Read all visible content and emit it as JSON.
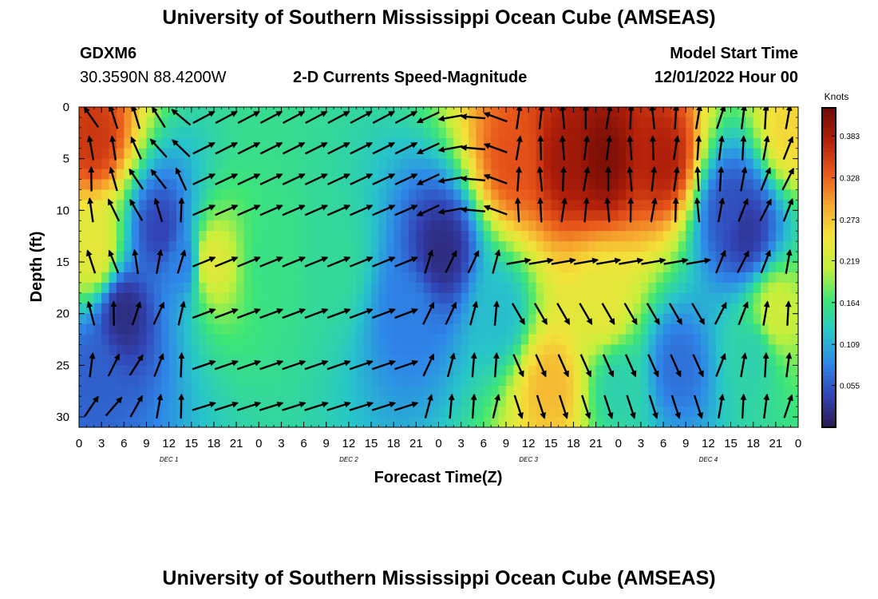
{
  "header": {
    "title": "University of Southern Mississippi Ocean Cube (AMSEAS)",
    "station": "GDXM6",
    "location": "30.3590N  88.4200W",
    "plot_title": "2-D Currents Speed-Magnitude",
    "model_start_label": "Model Start Time",
    "model_start_value": "12/01/2022 Hour 00",
    "footer_title": "University of Southern Mississippi Ocean Cube (AMSEAS)"
  },
  "chart_data": {
    "type": "heatmap",
    "title": "2-D Currents Speed-Magnitude",
    "xlabel": "Forecast Time(Z)",
    "ylabel": "Depth (ft)",
    "colorbar_label": "Knots",
    "colorbar_ticks": [
      "0.383",
      "0.328",
      "0.273",
      "0.219",
      "0.164",
      "0.109",
      "0.055"
    ],
    "colorbar_values": [
      0.383,
      0.328,
      0.273,
      0.219,
      0.164,
      0.109,
      0.055
    ],
    "color_range": [
      0.0,
      0.42
    ],
    "x_range_hours": [
      0,
      96
    ],
    "y_range_ft": [
      0,
      31
    ],
    "y_inverted": true,
    "x_tick_labels": [
      "0",
      "3",
      "6",
      "9",
      "12",
      "15",
      "18",
      "21",
      "0",
      "3",
      "6",
      "9",
      "12",
      "15",
      "18",
      "21",
      "0",
      "3",
      "6",
      "9",
      "12",
      "15",
      "18",
      "21",
      "0",
      "3",
      "6",
      "9",
      "12",
      "15",
      "18",
      "21",
      "0"
    ],
    "y_ticks": [
      0,
      5,
      10,
      15,
      20,
      25,
      30
    ],
    "day_labels": [
      {
        "label": "DEC 1",
        "hour": 12
      },
      {
        "label": "DEC 2",
        "hour": 36
      },
      {
        "label": "DEC 3",
        "hour": 60
      },
      {
        "label": "DEC 4",
        "hour": 84
      }
    ],
    "arrow_hours": [
      1,
      4,
      7,
      10,
      13,
      16,
      19,
      22,
      25,
      28,
      31,
      34,
      37,
      40,
      43,
      46,
      49,
      52,
      55,
      58,
      61,
      64,
      67,
      70,
      73,
      76,
      79,
      82,
      85,
      88,
      91,
      94
    ],
    "arrow_depths_ft": [
      1,
      4,
      7,
      10,
      15,
      20,
      25,
      29
    ],
    "speed_points": [
      {
        "hour": 2,
        "depth": 3,
        "speed": 0.36
      },
      {
        "hour": 2,
        "depth": 14,
        "speed": 0.24
      },
      {
        "hour": 2,
        "depth": 26,
        "speed": 0.06
      },
      {
        "hour": 6,
        "depth": 20,
        "speed": 0.02
      },
      {
        "hour": 11,
        "depth": 12,
        "speed": 0.04
      },
      {
        "hour": 14,
        "depth": 15,
        "speed": 0.08
      },
      {
        "hour": 17.5,
        "depth": 15,
        "speed": 0.24
      },
      {
        "hour": 26,
        "depth": 15,
        "speed": 0.16
      },
      {
        "hour": 34,
        "depth": 15,
        "speed": 0.15
      },
      {
        "hour": 44,
        "depth": 20,
        "speed": 0.08
      },
      {
        "hour": 48.5,
        "depth": 14,
        "speed": 0.02
      },
      {
        "hour": 56,
        "depth": 20,
        "speed": 0.12
      },
      {
        "hour": 58,
        "depth": 5,
        "speed": 0.34
      },
      {
        "hour": 65,
        "depth": 5,
        "speed": 0.39
      },
      {
        "hour": 70,
        "depth": 5,
        "speed": 0.41
      },
      {
        "hour": 78,
        "depth": 5,
        "speed": 0.38
      },
      {
        "hour": 70,
        "depth": 19,
        "speed": 0.24
      },
      {
        "hour": 63,
        "depth": 27,
        "speed": 0.28
      },
      {
        "hour": 72,
        "depth": 27,
        "speed": 0.14
      },
      {
        "hour": 80,
        "depth": 25,
        "speed": 0.07
      },
      {
        "hour": 87,
        "depth": 10,
        "speed": 0.05
      },
      {
        "hour": 89,
        "depth": 12,
        "speed": 0.03
      },
      {
        "hour": 90,
        "depth": 24,
        "speed": 0.14
      },
      {
        "hour": 93,
        "depth": 20,
        "speed": 0.22
      },
      {
        "hour": 95,
        "depth": 2,
        "speed": 0.26
      }
    ]
  },
  "colors": {
    "colormap": [
      "#2a1850",
      "#3244b5",
      "#2e86e8",
      "#27c6c9",
      "#3ee675",
      "#c4f03c",
      "#f3e23a",
      "#f6a52e",
      "#e8561a",
      "#b3200a",
      "#6e0a05"
    ],
    "arrow": "#000000",
    "text": "#000000"
  }
}
